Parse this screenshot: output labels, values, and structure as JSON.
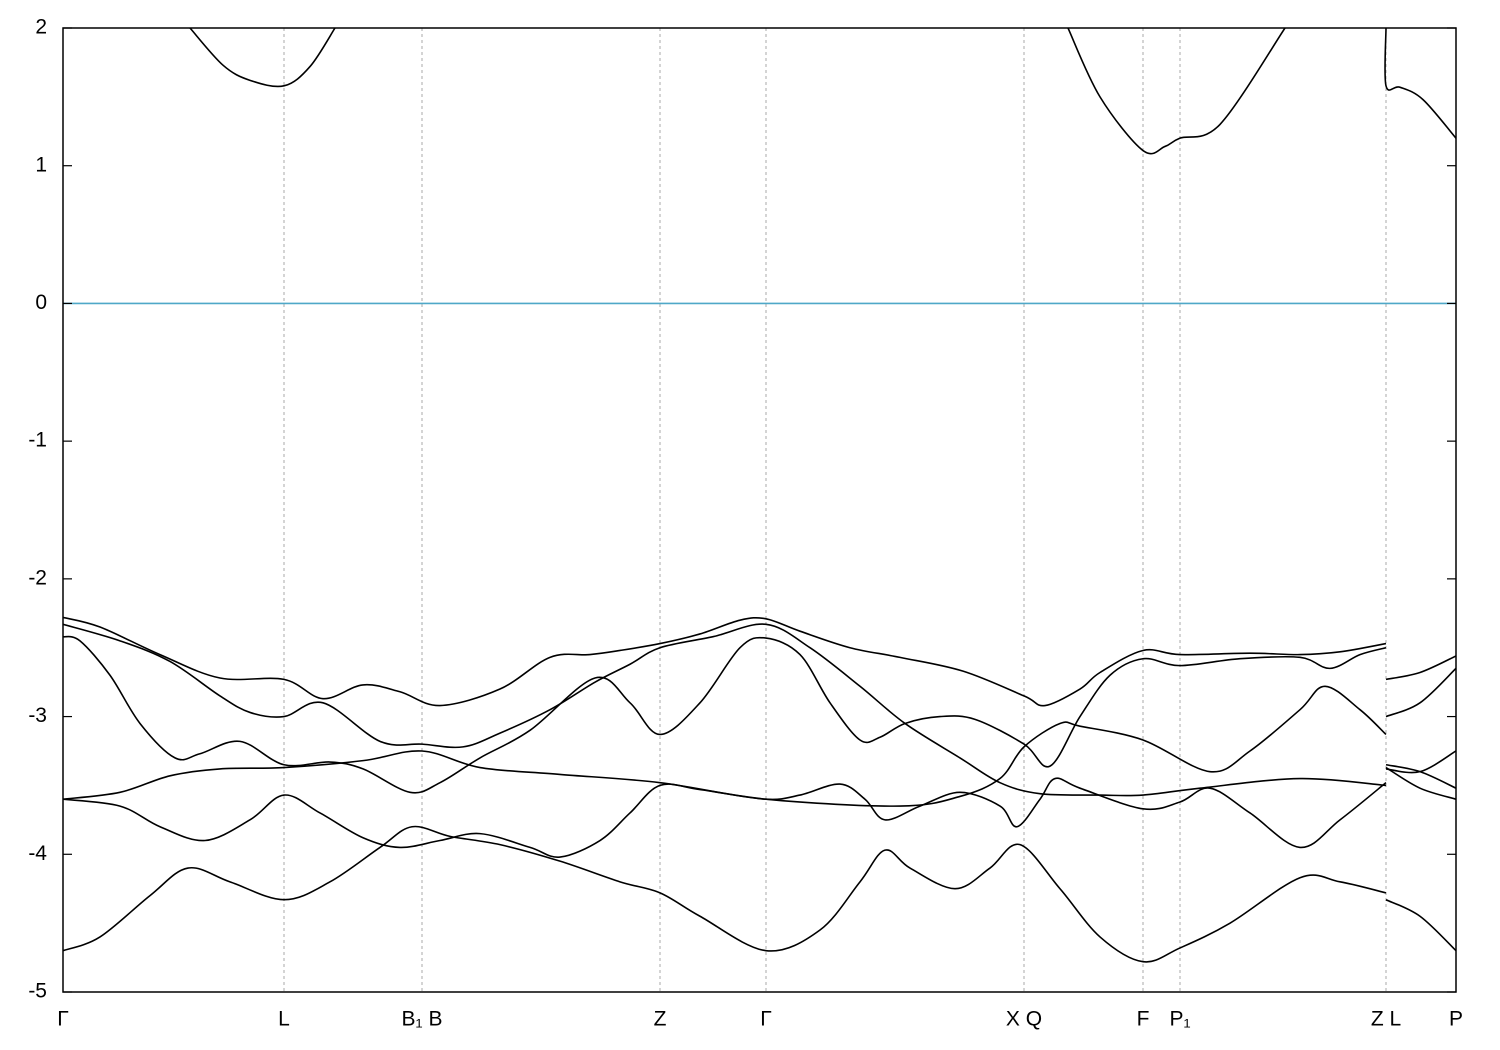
{
  "chart_data": {
    "type": "line",
    "xlim": [
      0,
      1393
    ],
    "ylim": [
      -5,
      2
    ],
    "xticks": [
      {
        "value": 0,
        "label": "Γ"
      },
      {
        "value": 221,
        "label": "L"
      },
      {
        "value": 359,
        "label": "B₁ B"
      },
      {
        "value": 597,
        "label": "Z"
      },
      {
        "value": 703,
        "label": "Γ"
      },
      {
        "value": 961,
        "label": "X Q"
      },
      {
        "value": 1080,
        "label": "F"
      },
      {
        "value": 1117,
        "label": "P₁"
      },
      {
        "value": 1323,
        "label": "Z L"
      },
      {
        "value": 1393,
        "label": "P"
      }
    ],
    "yticks": [
      -5,
      -4,
      -3,
      -2,
      -1,
      0,
      1,
      2
    ],
    "xgrid": true,
    "reference_line": {
      "value": 0,
      "color": "#4fa8c8"
    },
    "series": [
      {
        "color": "#000000",
        "x": [
          127,
          160,
          187,
          221,
          247,
          272
        ],
        "values": [
          2,
          1.73,
          1.62,
          1.58,
          1.72,
          2
        ]
      },
      {
        "color": "#000000",
        "x": [
          1005,
          1037,
          1080,
          1102,
          1117,
          1157,
          1222
        ],
        "values": [
          2,
          1.5,
          1.11,
          1.14,
          1.2,
          1.3,
          2
        ]
      },
      {
        "color": "#000000",
        "x": [
          1323,
          1323,
          1337,
          1360,
          1393
        ],
        "values": [
          2,
          1.58,
          1.57,
          1.48,
          1.2
        ]
      },
      {
        "color": "#000000",
        "x": [
          0,
          37,
          97,
          157,
          221,
          260,
          300,
          337,
          377,
          437,
          487,
          527,
          557,
          597,
          637,
          677,
          703,
          737,
          787,
          837,
          900,
          961,
          982,
          1017,
          1037,
          1080,
          1117,
          1187,
          1237,
          1277,
          1323
        ],
        "values": [
          -2.28,
          -2.35,
          -2.55,
          -2.72,
          -2.73,
          -2.87,
          -2.77,
          -2.82,
          -2.92,
          -2.8,
          -2.57,
          -2.55,
          -2.52,
          -2.47,
          -2.4,
          -2.3,
          -2.29,
          -2.38,
          -2.5,
          -2.57,
          -2.67,
          -2.85,
          -2.92,
          -2.8,
          -2.68,
          -2.52,
          -2.55,
          -2.54,
          -2.55,
          -2.53,
          -2.47
        ]
      },
      {
        "color": "#000000",
        "x": [
          1323,
          1357,
          1393
        ],
        "values": [
          -2.73,
          -2.68,
          -2.56
        ]
      },
      {
        "color": "#000000",
        "x": [
          0,
          57,
          107,
          157,
          187,
          221,
          260,
          317,
          359,
          400,
          437,
          487,
          532,
          567,
          597,
          650,
          703,
          747,
          797,
          842,
          897,
          937,
          977,
          1037,
          1080,
          1137,
          1237,
          1323
        ],
        "values": [
          -2.33,
          -2.45,
          -2.6,
          -2.85,
          -2.97,
          -3.0,
          -2.9,
          -3.18,
          -3.2,
          -3.22,
          -3.12,
          -2.95,
          -2.75,
          -2.62,
          -2.5,
          -2.42,
          -2.33,
          -2.5,
          -2.78,
          -3.05,
          -3.3,
          -3.48,
          -3.56,
          -3.57,
          -3.57,
          -3.52,
          -3.45,
          -3.5
        ]
      },
      {
        "color": "#000000",
        "x": [
          1323,
          1357,
          1393
        ],
        "values": [
          -3.35,
          -3.4,
          -3.52
        ]
      },
      {
        "color": "#000000",
        "x": [
          0,
          17,
          47,
          77,
          112,
          137,
          177,
          221,
          267,
          300,
          347,
          377,
          417,
          467,
          532,
          567,
          597,
          637,
          677,
          703,
          737,
          767,
          797,
          817,
          842,
          877,
          912,
          961,
          987,
          1017,
          1047,
          1080,
          1117,
          1177,
          1237,
          1267,
          1297,
          1323
        ],
        "values": [
          -2.42,
          -2.45,
          -2.7,
          -3.05,
          -3.3,
          -3.27,
          -3.18,
          -3.35,
          -3.33,
          -3.38,
          -3.55,
          -3.48,
          -3.3,
          -3.1,
          -2.72,
          -2.9,
          -3.13,
          -2.9,
          -2.5,
          -2.43,
          -2.55,
          -2.9,
          -3.17,
          -3.15,
          -3.05,
          -3.0,
          -3.02,
          -3.2,
          -3.36,
          -3.0,
          -2.7,
          -2.58,
          -2.63,
          -2.58,
          -2.57,
          -2.65,
          -2.55,
          -2.5
        ]
      },
      {
        "color": "#000000",
        "x": [
          1323,
          1357,
          1393
        ],
        "values": [
          -3.0,
          -2.9,
          -2.65
        ]
      },
      {
        "color": "#000000",
        "x": [
          0,
          57,
          107,
          157,
          221,
          300,
          359,
          417,
          497,
          597,
          703,
          837,
          897,
          937,
          961,
          997,
          1017,
          1080,
          1147,
          1187,
          1237,
          1262,
          1297,
          1323
        ],
        "values": [
          -3.6,
          -3.55,
          -3.43,
          -3.38,
          -3.37,
          -3.32,
          -3.25,
          -3.37,
          -3.42,
          -3.48,
          -3.6,
          -3.65,
          -3.58,
          -3.45,
          -3.22,
          -3.05,
          -3.07,
          -3.17,
          -3.4,
          -3.25,
          -2.95,
          -2.78,
          -2.95,
          -3.13
        ]
      },
      {
        "color": "#000000",
        "x": [
          1323,
          1357,
          1393
        ],
        "values": [
          -3.38,
          -3.4,
          -3.25
        ]
      },
      {
        "color": "#000000",
        "x": [
          0,
          57,
          97,
          142,
          187,
          221,
          257,
          300,
          337,
          377,
          417,
          467,
          497,
          537,
          567,
          597,
          637,
          703,
          737,
          777,
          802,
          822,
          857,
          897,
          937,
          954,
          977,
          992,
          1017,
          1080,
          1117,
          1147,
          1187,
          1237,
          1277,
          1323
        ],
        "values": [
          -3.6,
          -3.65,
          -3.8,
          -3.9,
          -3.75,
          -3.57,
          -3.7,
          -3.88,
          -3.95,
          -3.9,
          -3.85,
          -3.95,
          -4.02,
          -3.9,
          -3.7,
          -3.5,
          -3.53,
          -3.6,
          -3.57,
          -3.49,
          -3.6,
          -3.75,
          -3.65,
          -3.55,
          -3.65,
          -3.8,
          -3.6,
          -3.45,
          -3.52,
          -3.67,
          -3.62,
          -3.52,
          -3.7,
          -3.95,
          -3.75,
          -3.48
        ]
      },
      {
        "color": "#000000",
        "x": [
          1323,
          1357,
          1393
        ],
        "values": [
          -3.37,
          -3.52,
          -3.6
        ]
      },
      {
        "color": "#000000",
        "x": [
          0,
          37,
          87,
          125,
          167,
          221,
          267,
          317,
          349,
          387,
          437,
          497,
          557,
          597,
          637,
          703,
          757,
          797,
          822,
          847,
          892,
          927,
          957,
          997,
          1037,
          1080,
          1117,
          1167,
          1237,
          1277,
          1323
        ],
        "values": [
          -4.7,
          -4.6,
          -4.3,
          -4.1,
          -4.2,
          -4.33,
          -4.2,
          -3.95,
          -3.8,
          -3.87,
          -3.93,
          -4.05,
          -4.2,
          -4.28,
          -4.45,
          -4.7,
          -4.55,
          -4.2,
          -3.97,
          -4.1,
          -4.25,
          -4.1,
          -3.93,
          -4.25,
          -4.6,
          -4.78,
          -4.68,
          -4.5,
          -4.17,
          -4.2,
          -4.28
        ]
      },
      {
        "color": "#000000",
        "x": [
          1323,
          1357,
          1393
        ],
        "values": [
          -4.33,
          -4.45,
          -4.7
        ]
      }
    ]
  }
}
